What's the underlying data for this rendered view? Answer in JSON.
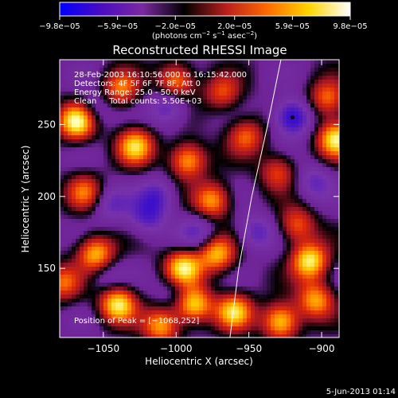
{
  "chart_data": {
    "type": "heatmap",
    "title": "Reconstructed RHESSI Image",
    "xlabel": "Heliocentric X (arcsec)",
    "ylabel": "Heliocentric Y (arcsec)",
    "xlim": [
      -1080,
      -888
    ],
    "ylim": [
      102,
      295
    ],
    "x_ticks": [
      -1050,
      -1000,
      -950,
      -900
    ],
    "y_ticks": [
      150,
      200,
      250
    ],
    "x_tick_labels": [
      "−1050",
      "−1000",
      "−950",
      "−900"
    ],
    "y_tick_labels": [
      "150",
      "200",
      "250"
    ],
    "colorbar": {
      "range": [
        -9.8e-05,
        9.8e-05
      ],
      "ticks": [
        -9.8e-05,
        -5.9e-05,
        -2e-05,
        2e-05,
        5.9e-05,
        9.8e-05
      ],
      "tick_labels": [
        "−9.8e−05",
        "−5.9e−05",
        "−2.0e−05",
        "2.0e−05",
        "5.9e−05",
        "9.8e−05"
      ],
      "units_main": "(photons cm",
      "units_sup1": "−2",
      "units_mid": " s",
      "units_sup2": "−1",
      "units_end": " asec",
      "units_sup3": "−2",
      "units_close": ")",
      "colors": [
        "#0000ff",
        "#4b0cbf",
        "#7a2aa0",
        "#000000",
        "#b81e1e",
        "#ff6a00",
        "#ffd400",
        "#ffffff"
      ]
    },
    "annotations": [
      "28-Feb-2003 16:10:56.000 to 16:15:42.000",
      "Detectors: 4F 5F 6F 7F 8F, Att 0",
      "Energy Range: 25.0 - 50.0 keV",
      "Clean     Total counts: 5.50E+03"
    ],
    "peak_label": "Position of Peak = [−1068,252]",
    "peak": [
      -1068,
      252
    ],
    "marker_position": [
      -920,
      255
    ],
    "limb_curve": [
      [
        -963,
        102
      ],
      [
        -957,
        150
      ],
      [
        -948,
        200
      ],
      [
        -937,
        250
      ],
      [
        -928,
        295
      ]
    ],
    "sources": [
      {
        "x": -1068,
        "y": 252,
        "v": 1.0
      },
      {
        "x": -1063,
        "y": 203,
        "v": 0.55
      },
      {
        "x": -1055,
        "y": 160,
        "v": 0.8
      },
      {
        "x": -1040,
        "y": 125,
        "v": 0.9
      },
      {
        "x": -1010,
        "y": 110,
        "v": 0.7
      },
      {
        "x": -988,
        "y": 125,
        "v": 0.85
      },
      {
        "x": -995,
        "y": 150,
        "v": 0.9
      },
      {
        "x": -972,
        "y": 160,
        "v": 0.75
      },
      {
        "x": -960,
        "y": 120,
        "v": 0.8
      },
      {
        "x": -928,
        "y": 113,
        "v": 0.85
      },
      {
        "x": -908,
        "y": 155,
        "v": 0.9
      },
      {
        "x": -904,
        "y": 128,
        "v": 0.7
      },
      {
        "x": -917,
        "y": 180,
        "v": 0.55
      },
      {
        "x": -890,
        "y": 240,
        "v": 0.9
      },
      {
        "x": -896,
        "y": 268,
        "v": 0.6
      },
      {
        "x": -1028,
        "y": 235,
        "v": 0.8
      },
      {
        "x": -992,
        "y": 225,
        "v": 0.75
      },
      {
        "x": -975,
        "y": 197,
        "v": 0.7
      },
      {
        "x": -1038,
        "y": 275,
        "v": 0.6
      },
      {
        "x": -1000,
        "y": 280,
        "v": 0.7
      },
      {
        "x": -968,
        "y": 272,
        "v": 0.5
      },
      {
        "x": -952,
        "y": 242,
        "v": 0.55
      },
      {
        "x": -930,
        "y": 217,
        "v": 0.5
      },
      {
        "x": -1078,
        "y": 140,
        "v": 0.55
      },
      {
        "x": -1045,
        "y": 195,
        "v": -0.35
      },
      {
        "x": -1057,
        "y": 260,
        "v": -0.3
      },
      {
        "x": -1005,
        "y": 262,
        "v": -0.45
      },
      {
        "x": -1020,
        "y": 185,
        "v": -0.4
      },
      {
        "x": -985,
        "y": 175,
        "v": -0.35
      },
      {
        "x": -1013,
        "y": 200,
        "v": -0.4
      },
      {
        "x": -920,
        "y": 255,
        "v": -0.7
      },
      {
        "x": -905,
        "y": 210,
        "v": -0.35
      },
      {
        "x": -945,
        "y": 175,
        "v": -0.4
      },
      {
        "x": -1000,
        "y": 135,
        "v": -0.25
      },
      {
        "x": -1048,
        "y": 145,
        "v": -0.25
      }
    ]
  },
  "footer": {
    "date": "5-Jun-2013 01:14"
  }
}
